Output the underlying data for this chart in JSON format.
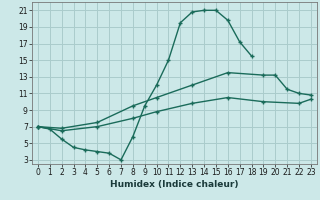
{
  "xlabel": "Humidex (Indice chaleur)",
  "xlim": [
    -0.5,
    23.5
  ],
  "ylim": [
    2.5,
    22
  ],
  "xticks": [
    0,
    1,
    2,
    3,
    4,
    5,
    6,
    7,
    8,
    9,
    10,
    11,
    12,
    13,
    14,
    15,
    16,
    17,
    18,
    19,
    20,
    21,
    22,
    23
  ],
  "yticks": [
    3,
    5,
    7,
    9,
    11,
    13,
    15,
    17,
    19,
    21
  ],
  "background_color": "#cce8e8",
  "grid_color": "#aacccc",
  "line_color": "#1a6b5a",
  "line1_x": [
    0,
    1,
    2,
    3,
    4,
    5,
    6,
    7,
    8,
    9,
    10,
    11,
    12,
    13,
    14,
    15,
    16,
    17,
    18
  ],
  "line1_y": [
    7,
    6.7,
    5.5,
    4.5,
    4.2,
    4.0,
    3.8,
    3.0,
    5.8,
    9.5,
    12.0,
    15.0,
    19.5,
    20.8,
    21.0,
    21.0,
    19.8,
    17.2,
    15.5
  ],
  "line2_x": [
    0,
    2,
    5,
    8,
    10,
    13,
    16,
    19,
    20,
    21,
    22,
    23
  ],
  "line2_y": [
    7,
    6.8,
    7.5,
    9.5,
    10.5,
    12.0,
    13.5,
    13.2,
    13.2,
    11.5,
    11.0,
    10.8
  ],
  "line3_x": [
    0,
    2,
    5,
    8,
    10,
    13,
    16,
    19,
    22,
    23
  ],
  "line3_y": [
    7,
    6.5,
    7.0,
    8.0,
    8.8,
    9.8,
    10.5,
    10.0,
    9.8,
    10.3
  ]
}
